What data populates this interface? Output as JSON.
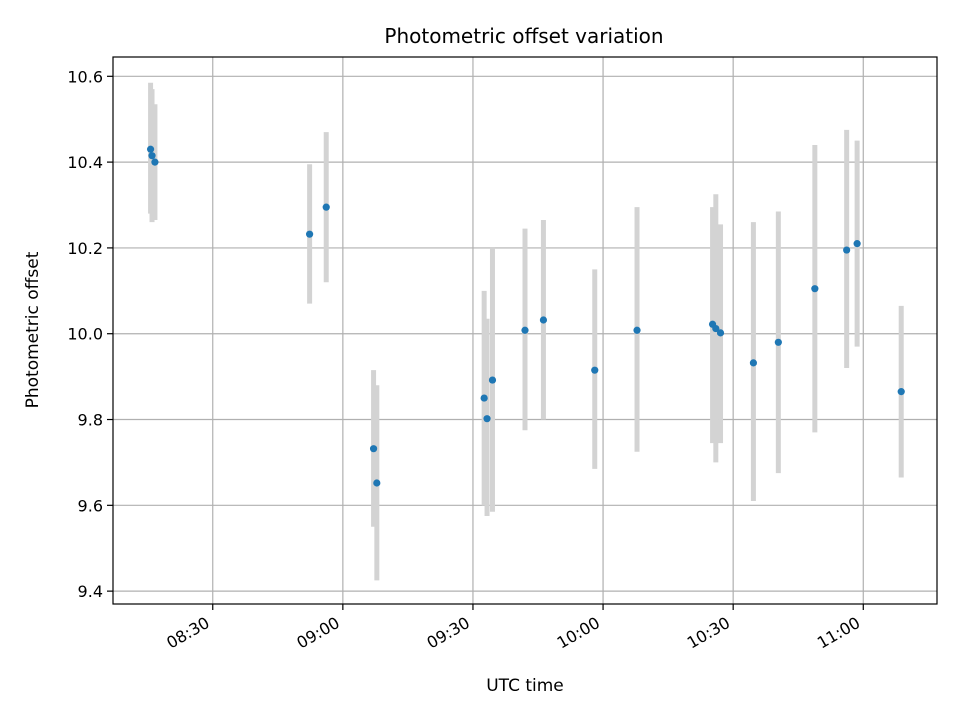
{
  "chart_data": {
    "type": "scatter",
    "title": "Photometric offset variation",
    "xlabel": "UTC time",
    "ylabel": "Photometric offset",
    "xlim": [
      "08:07",
      "11:17"
    ],
    "ylim": [
      9.37,
      10.645
    ],
    "x_ticks": [
      "08:30",
      "09:00",
      "09:30",
      "10:00",
      "10:30",
      "11:00"
    ],
    "y_ticks": [
      9.4,
      9.6,
      9.8,
      10.0,
      10.2,
      10.4,
      10.6
    ],
    "grid": true,
    "point_color": "#1f77b4",
    "errorbar_color": "#d3d3d3",
    "points": [
      {
        "x": "08:15:40",
        "y": 10.43,
        "ylow": 10.28,
        "yhigh": 10.585
      },
      {
        "x": "08:16:00",
        "y": 10.415,
        "ylow": 10.26,
        "yhigh": 10.57
      },
      {
        "x": "08:16:40",
        "y": 10.4,
        "ylow": 10.265,
        "yhigh": 10.535
      },
      {
        "x": "08:52:20",
        "y": 10.232,
        "ylow": 10.07,
        "yhigh": 10.395
      },
      {
        "x": "08:56:10",
        "y": 10.295,
        "ylow": 10.12,
        "yhigh": 10.47
      },
      {
        "x": "09:07:05",
        "y": 9.732,
        "ylow": 9.55,
        "yhigh": 9.915
      },
      {
        "x": "09:07:50",
        "y": 9.652,
        "ylow": 9.425,
        "yhigh": 9.88
      },
      {
        "x": "09:32:35",
        "y": 9.85,
        "ylow": 9.6,
        "yhigh": 10.1
      },
      {
        "x": "09:33:15",
        "y": 9.802,
        "ylow": 9.575,
        "yhigh": 10.035
      },
      {
        "x": "09:34:30",
        "y": 9.892,
        "ylow": 9.585,
        "yhigh": 10.2
      },
      {
        "x": "09:42:00",
        "y": 10.008,
        "ylow": 9.775,
        "yhigh": 10.245
      },
      {
        "x": "09:46:15",
        "y": 10.032,
        "ylow": 9.8,
        "yhigh": 10.265
      },
      {
        "x": "09:58:05",
        "y": 9.915,
        "ylow": 9.685,
        "yhigh": 10.15
      },
      {
        "x": "10:07:50",
        "y": 10.008,
        "ylow": 9.725,
        "yhigh": 10.295
      },
      {
        "x": "10:25:15",
        "y": 10.022,
        "ylow": 9.745,
        "yhigh": 10.295
      },
      {
        "x": "10:26:00",
        "y": 10.012,
        "ylow": 9.7,
        "yhigh": 10.325
      },
      {
        "x": "10:27:05",
        "y": 10.002,
        "ylow": 9.745,
        "yhigh": 10.255
      },
      {
        "x": "10:34:40",
        "y": 9.932,
        "ylow": 9.61,
        "yhigh": 10.26
      },
      {
        "x": "10:40:25",
        "y": 9.98,
        "ylow": 9.675,
        "yhigh": 10.285
      },
      {
        "x": "10:48:50",
        "y": 10.105,
        "ylow": 9.77,
        "yhigh": 10.44
      },
      {
        "x": "10:56:10",
        "y": 10.195,
        "ylow": 9.92,
        "yhigh": 10.475
      },
      {
        "x": "10:58:35",
        "y": 10.21,
        "ylow": 9.97,
        "yhigh": 10.45
      },
      {
        "x": "11:08:45",
        "y": 9.865,
        "ylow": 9.665,
        "yhigh": 10.065
      }
    ]
  }
}
